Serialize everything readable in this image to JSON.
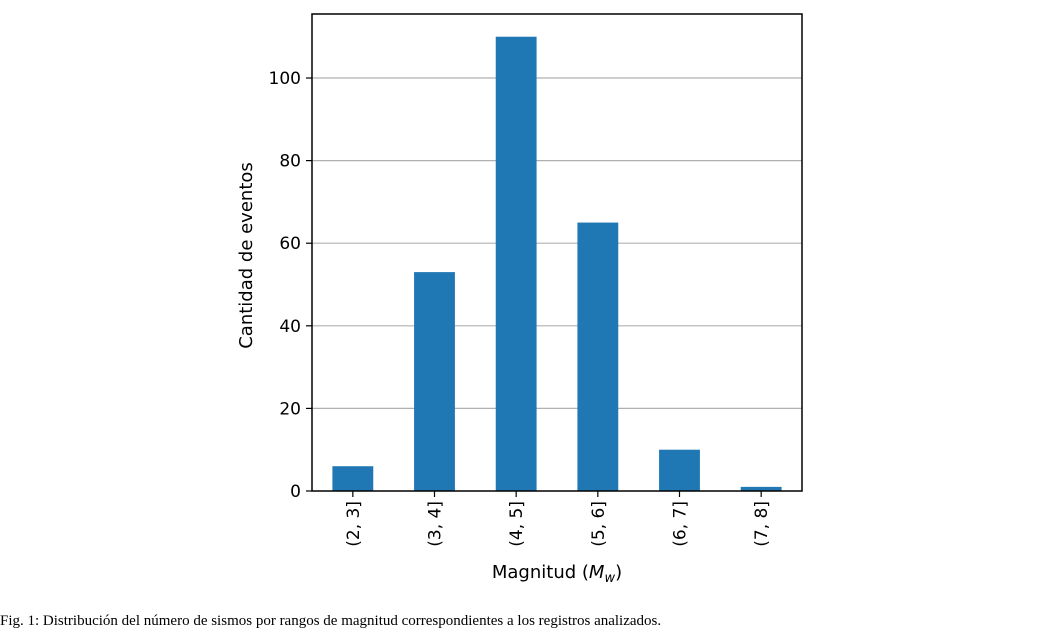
{
  "chart_data": {
    "type": "bar",
    "categories": [
      "(2, 3]",
      "(3, 4]",
      "(4, 5]",
      "(5, 6]",
      "(6, 7]",
      "(7, 8]"
    ],
    "values": [
      6,
      53,
      110,
      65,
      10,
      1
    ],
    "xlabel": "Magnitud (M_w)",
    "xlabel_parts": {
      "text": "Magnitud (",
      "symbol": "M",
      "subscript": "w",
      "close": ")"
    },
    "ylabel": "Cantidad de eventos",
    "ylim": [
      0,
      115.5
    ],
    "yticks": [
      0,
      20,
      40,
      60,
      80,
      100
    ],
    "grid": "horizontal",
    "bar_color": "#1f77b4",
    "grid_color": "#b0b0b0"
  },
  "caption": "Fig. 1: Distribución del número de sismos por rangos de magnitud correspondientes a los registros analizados."
}
